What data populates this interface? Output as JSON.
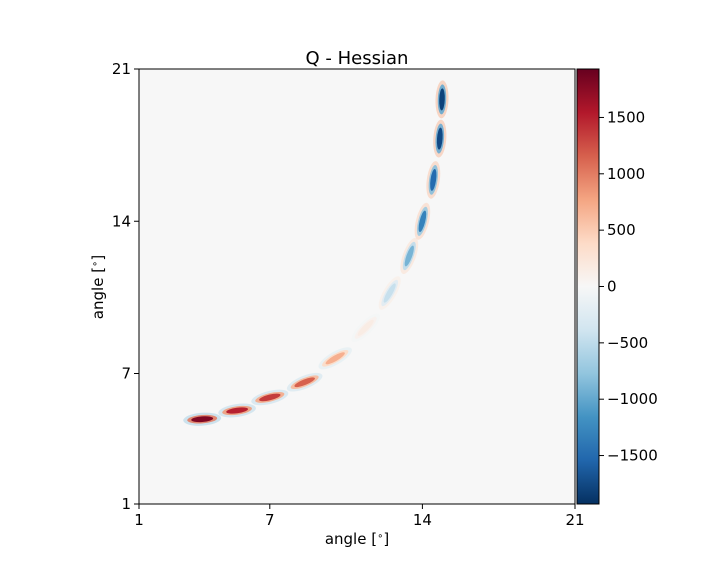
{
  "chart_data": {
    "type": "heatmap",
    "title": "Q - Hessian",
    "xlabel": "angle [$^\\circ$]",
    "ylabel": "angle [$^\\circ$]",
    "xlim": [
      1,
      21
    ],
    "ylim": [
      1,
      21
    ],
    "xticks": [
      1,
      7,
      14,
      21
    ],
    "yticks": [
      1,
      7,
      14,
      21
    ],
    "background_value": 0,
    "colorbar": {
      "colormap": "RdBu_r",
      "vmin": -1930,
      "vmax": 1930,
      "ticks": [
        -1500,
        -1000,
        -500,
        0,
        500,
        1000,
        1500
      ]
    },
    "blobs": [
      {
        "x": 3.9,
        "y": 4.9,
        "angle_deg": 4,
        "value": 1800
      },
      {
        "x": 5.5,
        "y": 5.3,
        "angle_deg": 8,
        "value": 1500
      },
      {
        "x": 7.0,
        "y": 5.9,
        "angle_deg": 14,
        "value": 1350
      },
      {
        "x": 8.6,
        "y": 6.6,
        "angle_deg": 22,
        "value": 1150
      },
      {
        "x": 10.0,
        "y": 7.7,
        "angle_deg": 30,
        "value": 700
      },
      {
        "x": 11.4,
        "y": 9.1,
        "angle_deg": 45,
        "value": 150
      },
      {
        "x": 12.5,
        "y": 10.7,
        "angle_deg": 60,
        "value": -450
      },
      {
        "x": 13.4,
        "y": 12.4,
        "angle_deg": 70,
        "value": -900
      },
      {
        "x": 14.0,
        "y": 14.0,
        "angle_deg": 76,
        "value": -1300
      },
      {
        "x": 14.5,
        "y": 15.9,
        "angle_deg": 82,
        "value": -1500
      },
      {
        "x": 14.8,
        "y": 17.8,
        "angle_deg": 86,
        "value": -1750
      },
      {
        "x": 14.9,
        "y": 19.6,
        "angle_deg": 88,
        "value": -1800
      }
    ]
  }
}
